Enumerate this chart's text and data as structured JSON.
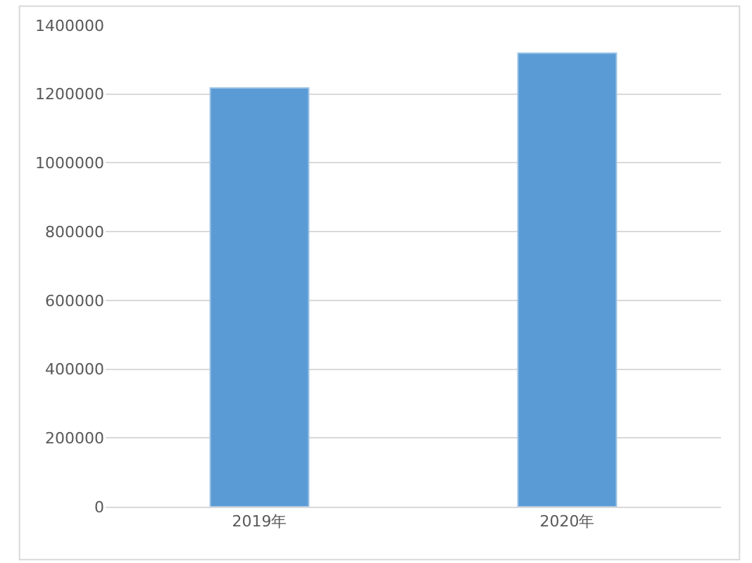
{
  "chart_data": {
    "type": "bar",
    "categories": [
      "2019年",
      "2020年"
    ],
    "values": [
      1218000,
      1319000
    ],
    "color": "#5b9bd5",
    "ylim": [
      0,
      1400000
    ],
    "yticks": [
      0,
      200000,
      400000,
      600000,
      800000,
      1000000,
      1200000,
      1400000
    ],
    "grid": "y",
    "legend": false
  }
}
